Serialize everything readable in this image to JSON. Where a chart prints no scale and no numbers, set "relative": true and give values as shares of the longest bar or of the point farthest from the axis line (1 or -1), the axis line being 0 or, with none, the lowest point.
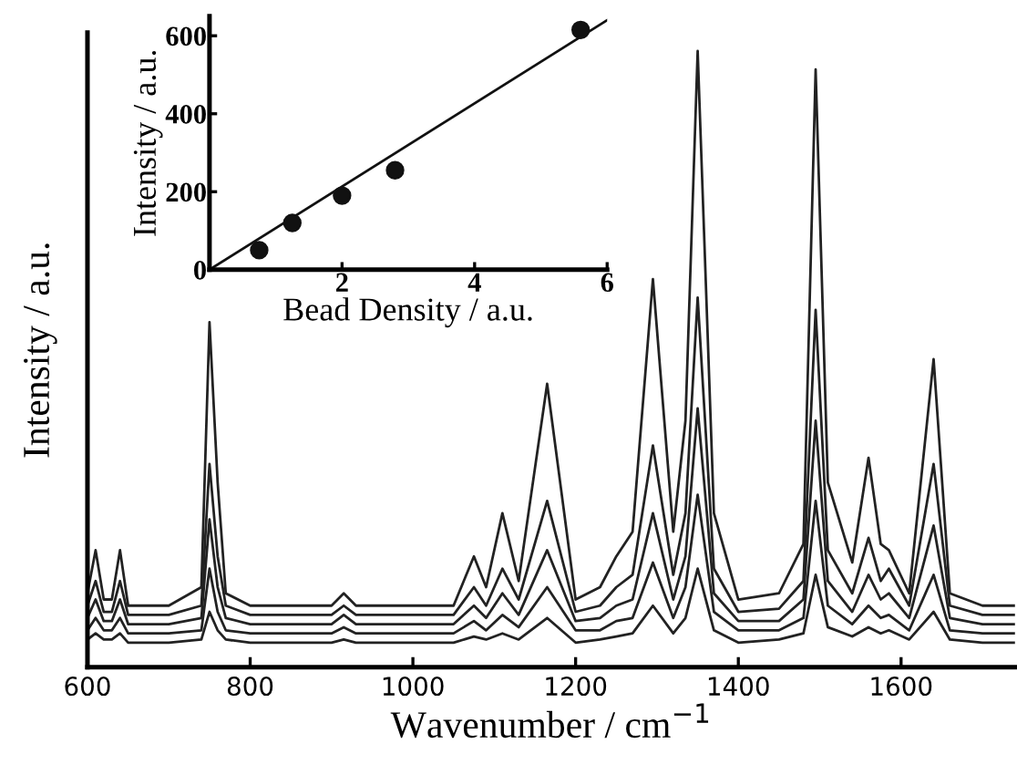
{
  "chart_data": [
    {
      "type": "line",
      "xlabel": "Wavenumber / cm$^{−1}$",
      "ylabel": "Intensity / a.u.",
      "relative": true,
      "xlim": [
        600,
        1740
      ],
      "xticks": [
        600,
        800,
        1000,
        1200,
        1400,
        1600
      ],
      "grid": false,
      "legend": false,
      "marker": "none",
      "line_style": "solid",
      "x": [
        600,
        610,
        620,
        630,
        640,
        650,
        700,
        740,
        750,
        760,
        770,
        800,
        850,
        900,
        915,
        930,
        1000,
        1050,
        1075,
        1090,
        1110,
        1130,
        1165,
        1200,
        1230,
        1250,
        1270,
        1295,
        1320,
        1335,
        1350,
        1370,
        1400,
        1450,
        1480,
        1495,
        1510,
        1540,
        1560,
        1575,
        1585,
        1610,
        1640,
        1660,
        1700,
        1740
      ],
      "series": [
        {
          "color": "#222222",
          "values": [
            0.12,
            0.19,
            0.11,
            0.11,
            0.19,
            0.1,
            0.1,
            0.13,
            0.56,
            0.3,
            0.12,
            0.1,
            0.1,
            0.1,
            0.12,
            0.1,
            0.1,
            0.1,
            0.18,
            0.13,
            0.25,
            0.14,
            0.46,
            0.11,
            0.13,
            0.18,
            0.22,
            0.63,
            0.22,
            0.4,
            1.0,
            0.25,
            0.11,
            0.12,
            0.2,
            0.97,
            0.3,
            0.17,
            0.34,
            0.2,
            0.19,
            0.12,
            0.5,
            0.12,
            0.1,
            0.1
          ]
        },
        {
          "color": "#222222",
          "values": [
            0.1,
            0.14,
            0.09,
            0.09,
            0.14,
            0.085,
            0.085,
            0.1,
            0.33,
            0.18,
            0.1,
            0.085,
            0.085,
            0.085,
            0.1,
            0.085,
            0.085,
            0.085,
            0.13,
            0.1,
            0.16,
            0.11,
            0.27,
            0.09,
            0.1,
            0.13,
            0.15,
            0.36,
            0.15,
            0.25,
            0.6,
            0.16,
            0.09,
            0.095,
            0.14,
            0.58,
            0.19,
            0.12,
            0.21,
            0.14,
            0.16,
            0.1,
            0.33,
            0.1,
            0.085,
            0.085
          ]
        },
        {
          "color": "#222222",
          "values": [
            0.08,
            0.11,
            0.075,
            0.075,
            0.11,
            0.07,
            0.07,
            0.08,
            0.24,
            0.13,
            0.08,
            0.07,
            0.07,
            0.07,
            0.085,
            0.07,
            0.07,
            0.07,
            0.1,
            0.08,
            0.12,
            0.085,
            0.19,
            0.075,
            0.08,
            0.1,
            0.11,
            0.25,
            0.11,
            0.18,
            0.42,
            0.12,
            0.075,
            0.075,
            0.11,
            0.4,
            0.14,
            0.09,
            0.15,
            0.11,
            0.12,
            0.08,
            0.23,
            0.08,
            0.07,
            0.07
          ]
        },
        {
          "color": "#222222",
          "values": [
            0.06,
            0.08,
            0.06,
            0.06,
            0.08,
            0.055,
            0.055,
            0.06,
            0.16,
            0.09,
            0.06,
            0.055,
            0.055,
            0.055,
            0.065,
            0.055,
            0.055,
            0.055,
            0.075,
            0.06,
            0.085,
            0.065,
            0.13,
            0.06,
            0.06,
            0.075,
            0.08,
            0.17,
            0.08,
            0.13,
            0.28,
            0.09,
            0.06,
            0.06,
            0.08,
            0.27,
            0.1,
            0.07,
            0.1,
            0.08,
            0.085,
            0.06,
            0.15,
            0.06,
            0.055,
            0.055
          ]
        },
        {
          "color": "#222222",
          "values": [
            0.045,
            0.055,
            0.045,
            0.045,
            0.055,
            0.04,
            0.04,
            0.045,
            0.09,
            0.06,
            0.045,
            0.04,
            0.04,
            0.04,
            0.045,
            0.04,
            0.04,
            0.04,
            0.05,
            0.045,
            0.055,
            0.045,
            0.08,
            0.04,
            0.045,
            0.05,
            0.055,
            0.1,
            0.055,
            0.08,
            0.16,
            0.06,
            0.04,
            0.045,
            0.055,
            0.15,
            0.065,
            0.05,
            0.065,
            0.055,
            0.06,
            0.045,
            0.09,
            0.045,
            0.04,
            0.04
          ]
        }
      ]
    },
    {
      "type": "scatter",
      "xlabel": "Bead Density / a.u.",
      "ylabel": "Intensity / a.u.",
      "xlim": [
        0,
        6
      ],
      "ylim": [
        0,
        650
      ],
      "xticks": [
        2,
        4,
        6
      ],
      "yticks": [
        0,
        200,
        400,
        600
      ],
      "grid": false,
      "legend": false,
      "marker": "circle",
      "series": [
        {
          "color": "#111111",
          "x": [
            0.75,
            1.25,
            2.0,
            2.8,
            5.6
          ],
          "values": [
            50,
            120,
            190,
            255,
            615
          ]
        },
        {
          "type": "line",
          "color": "#111111",
          "x": [
            0,
            6
          ],
          "values": [
            0,
            640
          ],
          "marker": "none",
          "line_style": "solid"
        }
      ]
    }
  ]
}
